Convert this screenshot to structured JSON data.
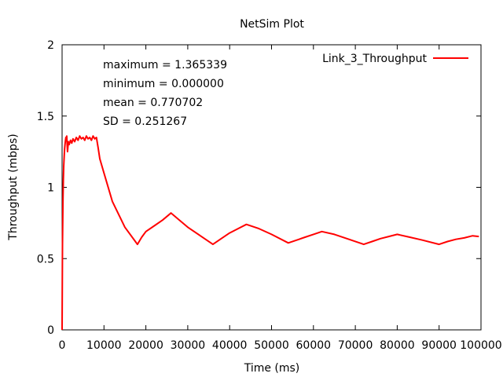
{
  "chart_data": {
    "type": "line",
    "title": "NetSim Plot",
    "xlabel": "Time (ms)",
    "ylabel": "Throughput (mbps)",
    "xlim": [
      0,
      100000
    ],
    "ylim": [
      0,
      2
    ],
    "xticks": [
      0,
      10000,
      20000,
      30000,
      40000,
      50000,
      60000,
      70000,
      80000,
      90000,
      100000
    ],
    "xtick_labels": [
      "0",
      "10000",
      "20000",
      "30000",
      "40000",
      "50000",
      "60000",
      "70000",
      "80000",
      "90000",
      "100000"
    ],
    "yticks": [
      0,
      0.5,
      1,
      1.5,
      2
    ],
    "ytick_labels": [
      "0",
      "0.5",
      "1",
      "1.5",
      "2"
    ],
    "legend_position": "top-right",
    "stats": [
      "maximum = 1.365339",
      "minimum = 0.000000",
      "mean = 0.770702",
      "SD = 0.251267"
    ],
    "series": [
      {
        "name": "Link_3_Throughput",
        "color": "#ff0000",
        "x": [
          0,
          100,
          200,
          300,
          400,
          500,
          600,
          700,
          800,
          900,
          1000,
          1100,
          1300,
          1500,
          1700,
          2000,
          2300,
          2600,
          3000,
          3400,
          3800,
          4200,
          4600,
          5000,
          5400,
          5800,
          6200,
          6600,
          7000,
          7400,
          7800,
          8200,
          8600,
          9000,
          10000,
          12000,
          15000,
          18000,
          19000,
          20000,
          22000,
          24000,
          26000,
          28000,
          30000,
          33000,
          36000,
          38000,
          40000,
          42000,
          44000,
          47000,
          50000,
          54000,
          56000,
          58000,
          60000,
          62000,
          65000,
          68000,
          72000,
          74000,
          76000,
          78000,
          80000,
          83000,
          86000,
          90000,
          92000,
          94000,
          96000,
          98000,
          99500
        ],
        "values": [
          0.0,
          0.6,
          0.9,
          1.05,
          1.15,
          1.22,
          1.27,
          1.3,
          1.33,
          1.35,
          1.34,
          1.36,
          1.25,
          1.32,
          1.3,
          1.33,
          1.31,
          1.34,
          1.32,
          1.35,
          1.33,
          1.36,
          1.34,
          1.35,
          1.33,
          1.36,
          1.34,
          1.35,
          1.33,
          1.36,
          1.34,
          1.35,
          1.28,
          1.2,
          1.1,
          0.9,
          0.72,
          0.6,
          0.65,
          0.69,
          0.73,
          0.77,
          0.82,
          0.77,
          0.72,
          0.66,
          0.6,
          0.64,
          0.68,
          0.71,
          0.74,
          0.71,
          0.67,
          0.61,
          0.63,
          0.65,
          0.67,
          0.69,
          0.67,
          0.64,
          0.6,
          0.62,
          0.64,
          0.655,
          0.67,
          0.65,
          0.63,
          0.6,
          0.62,
          0.635,
          0.645,
          0.66,
          0.655
        ]
      }
    ]
  }
}
